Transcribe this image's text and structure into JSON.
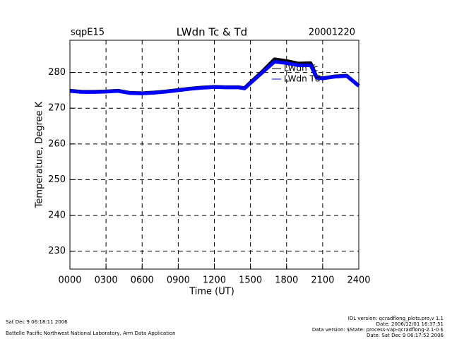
{
  "chart_data": {
    "type": "line",
    "title": "LWdn Tc & Td",
    "subtitle_left": "sqpE15",
    "subtitle_right": "20001220",
    "xlabel": "Time (UT)",
    "ylabel": "Temperature, Degree K",
    "x": [
      0,
      100,
      200,
      300,
      400,
      500,
      600,
      700,
      800,
      900,
      1000,
      1100,
      1200,
      1300,
      1400,
      1450,
      1500,
      1600,
      1700,
      1800,
      1900,
      2000,
      2050,
      2100,
      2200,
      2300,
      2400
    ],
    "series": [
      {
        "name": "LWdn Tc",
        "color": "#000000",
        "values": [
          274.9,
          274.6,
          274.6,
          274.7,
          274.9,
          274.3,
          274.2,
          274.4,
          274.7,
          275.1,
          275.5,
          275.8,
          276.0,
          275.9,
          275.9,
          275.6,
          277.2,
          280.3,
          283.7,
          283.2,
          282.5,
          282.6,
          278.7,
          278.4,
          278.9,
          279.1,
          276.3
        ]
      },
      {
        "name": "LWdn Td",
        "color": "#0000ff",
        "values": [
          274.8,
          274.5,
          274.5,
          274.6,
          274.8,
          274.2,
          274.1,
          274.3,
          274.6,
          275.0,
          275.4,
          275.7,
          275.9,
          275.8,
          275.8,
          275.5,
          277.0,
          280.0,
          283.0,
          282.6,
          282.0,
          282.0,
          278.5,
          278.3,
          278.8,
          279.0,
          276.2
        ]
      }
    ],
    "xlim": [
      0,
      2400
    ],
    "xticks": [
      {
        "value": 0,
        "label": "0000"
      },
      {
        "value": 300,
        "label": "0300"
      },
      {
        "value": 600,
        "label": "0600"
      },
      {
        "value": 900,
        "label": "0900"
      },
      {
        "value": 1200,
        "label": "1200"
      },
      {
        "value": 1500,
        "label": "1500"
      },
      {
        "value": 1800,
        "label": "1800"
      },
      {
        "value": 2100,
        "label": "2100"
      },
      {
        "value": 2400,
        "label": "2400"
      }
    ],
    "ylim": [
      225,
      289
    ],
    "yticks": [
      230,
      240,
      250,
      260,
      270,
      280
    ],
    "grid": true,
    "footer_left": [
      "Sat Dec  9 06:18:11 2006",
      "Battelle Pacific Northwest National Laboratory, Arm Data Application"
    ],
    "footer_right": [
      "IDL version: qcradflong_plots.pro,v 1.1",
      "Date: 2006/12/01 16:37:51",
      "Data version: $State: process-vap-qcradflong-2.1-0 $",
      "Date: Sat Dec  9 06:17:52 2006"
    ]
  }
}
